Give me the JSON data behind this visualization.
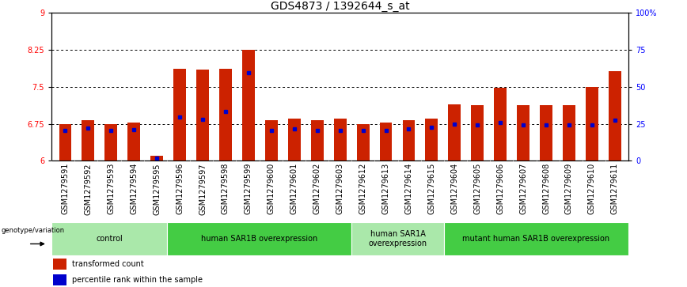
{
  "title": "GDS4873 / 1392644_s_at",
  "samples": [
    "GSM1279591",
    "GSM1279592",
    "GSM1279593",
    "GSM1279594",
    "GSM1279595",
    "GSM1279596",
    "GSM1279597",
    "GSM1279598",
    "GSM1279599",
    "GSM1279600",
    "GSM1279601",
    "GSM1279602",
    "GSM1279603",
    "GSM1279612",
    "GSM1279613",
    "GSM1279614",
    "GSM1279615",
    "GSM1279604",
    "GSM1279605",
    "GSM1279606",
    "GSM1279607",
    "GSM1279608",
    "GSM1279609",
    "GSM1279610",
    "GSM1279611"
  ],
  "red_values": [
    6.75,
    6.82,
    6.75,
    6.78,
    6.1,
    7.87,
    7.85,
    7.87,
    8.25,
    6.83,
    6.85,
    6.83,
    6.85,
    6.75,
    6.78,
    6.82,
    6.85,
    7.15,
    7.12,
    7.48,
    7.12,
    7.12,
    7.13,
    7.5,
    7.82
  ],
  "blue_values": [
    6.62,
    6.67,
    6.62,
    6.63,
    6.05,
    6.88,
    6.84,
    7.0,
    7.78,
    6.62,
    6.65,
    6.62,
    6.62,
    6.62,
    6.62,
    6.65,
    6.68,
    6.75,
    6.72,
    6.78,
    6.72,
    6.72,
    6.73,
    6.72,
    6.83
  ],
  "groups": [
    {
      "label": "control",
      "start": 0,
      "end": 5,
      "color": "#aae8aa"
    },
    {
      "label": "human SAR1B overexpression",
      "start": 5,
      "end": 13,
      "color": "#44cc44"
    },
    {
      "label": "human SAR1A\noverexpression",
      "start": 13,
      "end": 17,
      "color": "#aae8aa"
    },
    {
      "label": "mutant human SAR1B overexpression",
      "start": 17,
      "end": 25,
      "color": "#44cc44"
    }
  ],
  "ymin": 6.0,
  "ymax": 9.0,
  "yticks": [
    6.0,
    6.75,
    7.5,
    8.25,
    9.0
  ],
  "ytick_labels": [
    "6",
    "6.75",
    "7.5",
    "8.25",
    "9"
  ],
  "right_yticks_pct": [
    0,
    25,
    50,
    75,
    100
  ],
  "right_ytick_labels": [
    "0",
    "25",
    "50",
    "75",
    "100%"
  ],
  "bar_color": "#cc2200",
  "dot_color": "#0000cc",
  "title_fontsize": 10,
  "tick_fontsize": 7,
  "group_fontsize": 7.5,
  "xtick_bg_color": "#c8c8c8",
  "spine_color": "#000000"
}
